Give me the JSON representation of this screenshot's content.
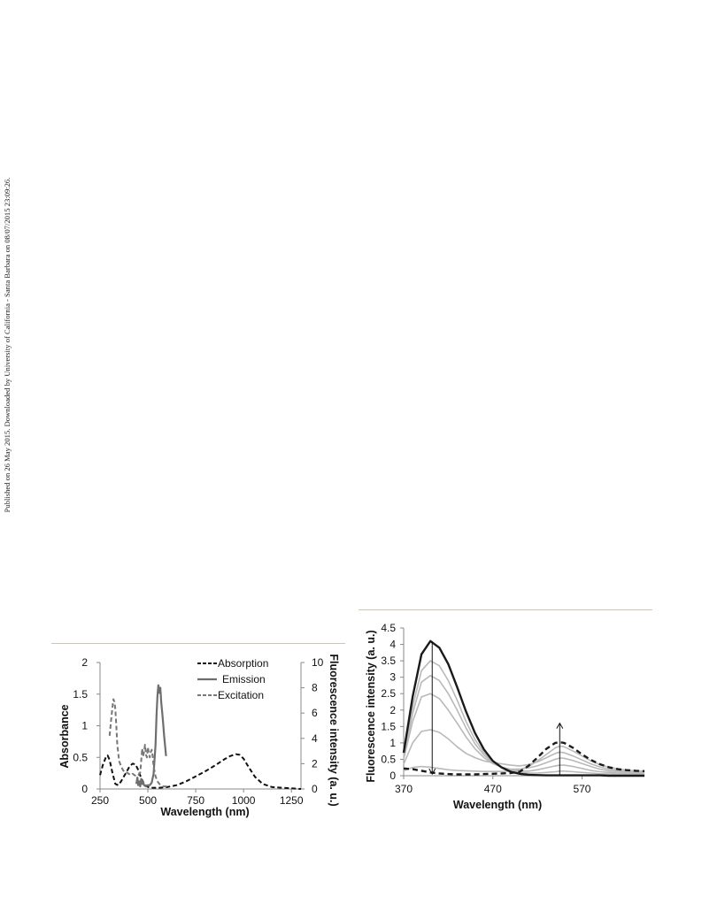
{
  "sidebar_note": "Published on 26 May 2015. Downloaded by University of California - Santa Barbara on 08/07/2015 23:09:26.",
  "colors": {
    "absorption": "#111111",
    "emission": "#6e6e6e",
    "excitation": "#777777",
    "titration_light": "#b9b9b9",
    "titration_bold": "#1a1a1a",
    "axis": "#888888"
  },
  "chart_data": [
    {
      "type": "line",
      "title": "",
      "xlabel": "Wavelength (nm)",
      "ylabel": "Absorbance",
      "y2label": "Fluorescence intensity (a. u.)",
      "xlim": [
        250,
        1300
      ],
      "ylim": [
        0,
        2
      ],
      "y2lim": [
        0,
        10
      ],
      "xticks": [
        250,
        500,
        750,
        1000,
        1250
      ],
      "yticks": [
        0,
        0.5,
        1,
        1.5,
        2
      ],
      "y2ticks": [
        0,
        2,
        4,
        6,
        8,
        10
      ],
      "grid": false,
      "legend_position": "top-right",
      "series": [
        {
          "name": "Absorption",
          "axis": "left",
          "style": "dashed",
          "x": [
            250,
            265,
            280,
            290,
            300,
            315,
            330,
            345,
            360,
            375,
            390,
            405,
            420,
            435,
            450,
            465,
            480,
            495,
            510,
            530,
            560,
            600,
            650,
            700,
            750,
            800,
            850,
            900,
            930,
            960,
            980,
            1000,
            1030,
            1060,
            1100,
            1150,
            1200,
            1250,
            1300
          ],
          "y": [
            0.22,
            0.38,
            0.5,
            0.53,
            0.46,
            0.25,
            0.08,
            0.06,
            0.12,
            0.2,
            0.28,
            0.36,
            0.4,
            0.39,
            0.3,
            0.17,
            0.08,
            0.04,
            0.02,
            0.02,
            0.02,
            0.03,
            0.06,
            0.12,
            0.2,
            0.28,
            0.37,
            0.47,
            0.52,
            0.55,
            0.54,
            0.48,
            0.33,
            0.19,
            0.08,
            0.03,
            0.02,
            0.01,
            0.0
          ]
        },
        {
          "name": "Emission",
          "axis": "right",
          "style": "solid",
          "x": [
            440,
            445,
            450,
            455,
            460,
            465,
            470,
            475,
            480,
            490,
            500,
            510,
            520,
            530,
            540,
            545,
            550,
            555,
            560,
            565,
            570,
            575,
            580,
            585,
            590,
            595
          ],
          "y": [
            0.4,
            0.9,
            0.3,
            0.6,
            0.2,
            0.8,
            0.4,
            0.6,
            0.3,
            0.2,
            0.3,
            0.3,
            0.5,
            1.2,
            3.5,
            5.8,
            7.4,
            8.2,
            7.6,
            8.0,
            6.8,
            6.0,
            5.2,
            4.2,
            3.4,
            2.6
          ]
        },
        {
          "name": "Excitation",
          "axis": "right",
          "style": "dashed",
          "x": [
            300,
            305,
            310,
            315,
            320,
            325,
            330,
            335,
            340,
            350,
            360,
            370,
            380,
            390,
            400,
            410,
            420,
            430,
            440,
            450,
            460,
            465,
            470,
            475,
            480,
            485,
            490,
            495,
            500,
            505,
            510,
            515,
            520,
            525,
            530,
            540,
            550,
            560,
            570,
            580,
            590,
            600
          ],
          "y": [
            4.2,
            5.0,
            5.8,
            6.5,
            7.1,
            6.9,
            6.3,
            5.0,
            3.5,
            2.2,
            1.8,
            1.5,
            1.3,
            1.3,
            1.2,
            1.1,
            1.2,
            1.1,
            1.0,
            1.1,
            1.3,
            2.2,
            3.2,
            2.6,
            2.9,
            3.5,
            2.7,
            2.5,
            3.3,
            2.9,
            2.5,
            2.9,
            3.1,
            2.6,
            1.8,
            1.0,
            0.6,
            0.4,
            0.3,
            0.2,
            0.2,
            0.2
          ]
        }
      ]
    },
    {
      "type": "line",
      "title": "",
      "xlabel": "Wavelength (nm)",
      "ylabel": "Fluorescence intensity (a. u.)",
      "xlim": [
        370,
        640
      ],
      "ylim": [
        0,
        4.5
      ],
      "xticks": [
        370,
        470,
        570
      ],
      "yticks": [
        0,
        0.5,
        1,
        1.5,
        2,
        2.5,
        3,
        3.5,
        4,
        4.5
      ],
      "grid": false,
      "arrows": [
        {
          "x": 402,
          "from": 4.1,
          "to": 0.05,
          "direction": "down"
        },
        {
          "x": 545,
          "from": 0.0,
          "to": 1.6,
          "direction": "up"
        }
      ],
      "x": [
        370,
        380,
        390,
        400,
        410,
        420,
        430,
        440,
        450,
        460,
        470,
        480,
        490,
        500,
        510,
        520,
        530,
        540,
        545,
        550,
        560,
        570,
        580,
        590,
        600,
        610,
        620,
        630,
        640
      ],
      "series": [
        {
          "style": "bold",
          "y": [
            0.7,
            2.4,
            3.7,
            4.1,
            3.9,
            3.4,
            2.7,
            1.95,
            1.3,
            0.8,
            0.45,
            0.25,
            0.12,
            0.06,
            0.03,
            0.02,
            0.01,
            0.01,
            0.01,
            0.01,
            0.01,
            0.01,
            0.01,
            0.01,
            0.0,
            0.0,
            0.0,
            0.0,
            0.0
          ]
        },
        {
          "style": "light",
          "y": [
            0.6,
            2.1,
            3.2,
            3.5,
            3.35,
            2.9,
            2.3,
            1.65,
            1.1,
            0.7,
            0.42,
            0.25,
            0.15,
            0.1,
            0.08,
            0.08,
            0.1,
            0.12,
            0.14,
            0.14,
            0.12,
            0.1,
            0.08,
            0.06,
            0.05,
            0.04,
            0.03,
            0.02,
            0.02
          ]
        },
        {
          "style": "light",
          "y": [
            0.55,
            1.9,
            2.85,
            3.05,
            2.9,
            2.5,
            2.0,
            1.45,
            0.97,
            0.63,
            0.4,
            0.26,
            0.18,
            0.14,
            0.14,
            0.18,
            0.24,
            0.3,
            0.32,
            0.32,
            0.28,
            0.22,
            0.16,
            0.12,
            0.1,
            0.08,
            0.06,
            0.05,
            0.04
          ]
        },
        {
          "style": "light",
          "y": [
            0.5,
            1.65,
            2.4,
            2.5,
            2.35,
            2.0,
            1.6,
            1.18,
            0.82,
            0.55,
            0.37,
            0.26,
            0.2,
            0.2,
            0.24,
            0.3,
            0.4,
            0.5,
            0.54,
            0.53,
            0.46,
            0.37,
            0.28,
            0.2,
            0.15,
            0.12,
            0.1,
            0.08,
            0.07
          ]
        },
        {
          "style": "light",
          "y": [
            0.35,
            1.0,
            1.35,
            1.4,
            1.32,
            1.12,
            0.88,
            0.68,
            0.55,
            0.45,
            0.4,
            0.36,
            0.32,
            0.3,
            0.34,
            0.42,
            0.55,
            0.68,
            0.72,
            0.7,
            0.6,
            0.48,
            0.36,
            0.27,
            0.2,
            0.16,
            0.13,
            0.11,
            0.1
          ]
        },
        {
          "style": "light",
          "y": [
            0.15,
            0.25,
            0.28,
            0.26,
            0.22,
            0.18,
            0.16,
            0.15,
            0.14,
            0.13,
            0.13,
            0.13,
            0.14,
            0.18,
            0.28,
            0.45,
            0.65,
            0.85,
            0.9,
            0.88,
            0.75,
            0.6,
            0.45,
            0.34,
            0.26,
            0.21,
            0.17,
            0.15,
            0.14
          ]
        },
        {
          "style": "bold-dashed",
          "y": [
            0.22,
            0.2,
            0.15,
            0.1,
            0.07,
            0.05,
            0.04,
            0.04,
            0.04,
            0.05,
            0.06,
            0.07,
            0.08,
            0.12,
            0.3,
            0.55,
            0.82,
            1.0,
            1.02,
            1.0,
            0.85,
            0.65,
            0.48,
            0.35,
            0.26,
            0.2,
            0.17,
            0.15,
            0.14
          ]
        }
      ]
    }
  ]
}
